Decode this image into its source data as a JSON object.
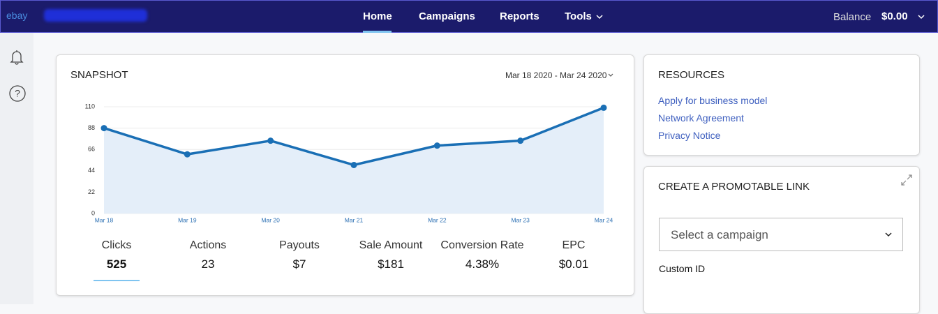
{
  "nav": {
    "logo": "ebay",
    "items": [
      "Home",
      "Campaigns",
      "Reports",
      "Tools"
    ],
    "balance_label": "Balance",
    "balance": "$0.00"
  },
  "snapshot": {
    "title": "SNAPSHOT",
    "date_range": "Mar 18 2020 - Mar 24 2020",
    "metrics": [
      {
        "label": "Clicks",
        "value": "525"
      },
      {
        "label": "Actions",
        "value": "23"
      },
      {
        "label": "Payouts",
        "value": "$7"
      },
      {
        "label": "Sale Amount",
        "value": "$181"
      },
      {
        "label": "Conversion Rate",
        "value": "4.38%"
      },
      {
        "label": "EPC",
        "value": "$0.01"
      }
    ]
  },
  "chart_data": {
    "type": "area",
    "categories": [
      "Mar 18",
      "Mar 19",
      "Mar 20",
      "Mar 21",
      "Mar 22",
      "Mar 23",
      "Mar 24"
    ],
    "values": [
      88,
      61,
      75,
      50,
      70,
      75,
      109
    ],
    "color": "#1a6fb5",
    "ylim": [
      0,
      110
    ],
    "yticks": [
      0,
      22,
      44,
      66,
      88,
      110
    ],
    "grid": true
  },
  "resources": {
    "title": "RESOURCES",
    "links": [
      "Apply for business model",
      "Network Agreement",
      "Privacy Notice"
    ]
  },
  "promo": {
    "title": "CREATE A PROMOTABLE LINK",
    "select_placeholder": "Select a campaign",
    "custom_id_label": "Custom ID"
  }
}
